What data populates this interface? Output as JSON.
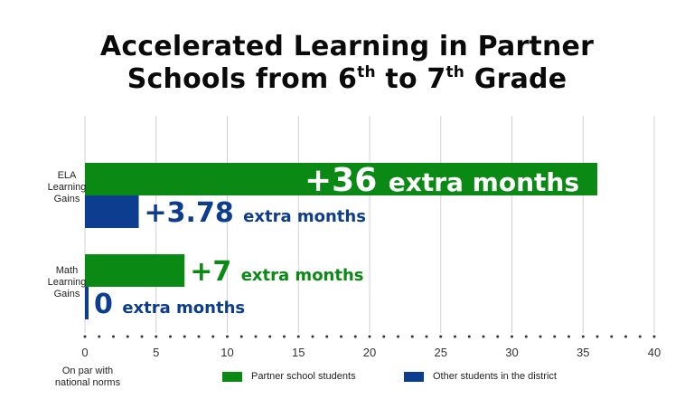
{
  "title": {
    "line1": "Accelerated Learning in Partner",
    "line2_a": "Schools from 6",
    "sup1": "th",
    "line2_b": " to 7",
    "sup2": "th",
    "line2_c": " Grade"
  },
  "colors": {
    "partner": "#0a8a14",
    "district": "#0c3d8e",
    "grid": "#d0d0d0"
  },
  "chart_data": {
    "type": "bar",
    "orientation": "horizontal",
    "categories": [
      "ELA Learning Gains",
      "Math Learning Gains"
    ],
    "category_lines": [
      [
        "ELA",
        "Learning",
        "Gains"
      ],
      [
        "Math",
        "Learning",
        "Gains"
      ]
    ],
    "series": [
      {
        "name": "Partner school students",
        "values": [
          36,
          7
        ],
        "value_labels": [
          "+36",
          "+7"
        ],
        "unit_label": "extra months"
      },
      {
        "name": "Other students in the district",
        "values": [
          3.78,
          0
        ],
        "value_labels": [
          "+3.78",
          "0"
        ],
        "unit_label": "extra months"
      }
    ],
    "xlim": [
      0,
      40
    ],
    "xticks": [
      0,
      5,
      10,
      15,
      20,
      25,
      30,
      35,
      40
    ],
    "xtick_labels": [
      "0",
      "5",
      "10",
      "15",
      "20",
      "25",
      "30",
      "35",
      "40"
    ],
    "zero_label": "On par with national norms",
    "zero_label_lines": [
      "On par with",
      "national norms"
    ],
    "grid": true,
    "legend_position": "bottom"
  }
}
